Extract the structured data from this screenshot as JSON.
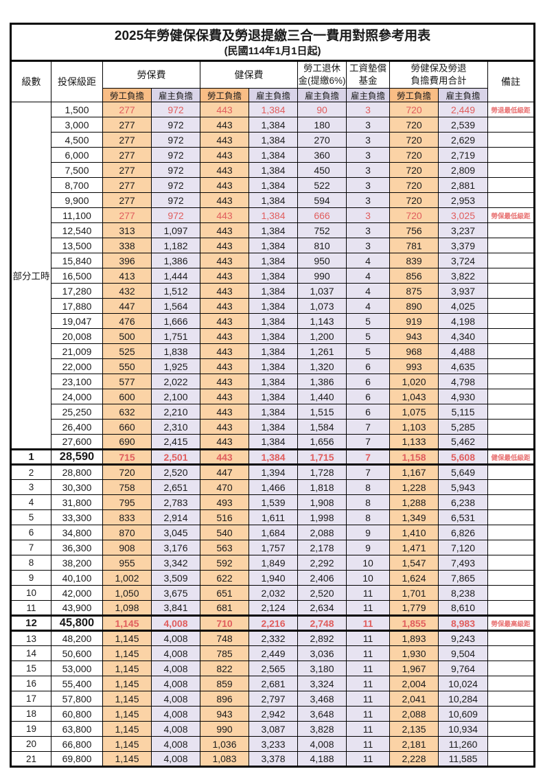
{
  "title": "2025年勞健保保費及勞退提繳三合一費用對照參考用表",
  "subtitle": "(民國114年1月1日起)",
  "header": {
    "level": "級數",
    "bracket": "投保級距",
    "labor_insurance": "勞保費",
    "health_insurance": "健保費",
    "pension_line1": "勞工退休",
    "pension_line2": "金(提繳6%)",
    "wage_fund_line1": "工資墊償",
    "wage_fund_line2": "基金",
    "total_line1": "勞健保及勞退",
    "total_line2": "負擔費用合計",
    "remark": "備註",
    "employee_share": "勞工負擔",
    "employer_share": "雇主負擔"
  },
  "part_time_label": "部分工時",
  "colors": {
    "employee_header_bg": "#f9bd85",
    "employee_cell_bg": "#fbd3a6",
    "employer_header_bg": "#d9d4e8",
    "employer_cell_bg": "#e7e3f1",
    "highlight_red": "#e05d5d",
    "remark_red": "#e87272"
  },
  "rows": [
    {
      "level": "",
      "bracket": "1,500",
      "li_emp": "277",
      "li_er": "972",
      "hi_emp": "443",
      "hi_er": "1,384",
      "pension": "90",
      "fund": "3",
      "tot_emp": "720",
      "tot_er": "2,449",
      "remark": "勞退最低級距",
      "red": true,
      "major": false
    },
    {
      "level": "",
      "bracket": "3,000",
      "li_emp": "277",
      "li_er": "972",
      "hi_emp": "443",
      "hi_er": "1,384",
      "pension": "180",
      "fund": "3",
      "tot_emp": "720",
      "tot_er": "2,539",
      "remark": "",
      "red": false,
      "major": false
    },
    {
      "level": "",
      "bracket": "4,500",
      "li_emp": "277",
      "li_er": "972",
      "hi_emp": "443",
      "hi_er": "1,384",
      "pension": "270",
      "fund": "3",
      "tot_emp": "720",
      "tot_er": "2,629",
      "remark": "",
      "red": false,
      "major": false
    },
    {
      "level": "",
      "bracket": "6,000",
      "li_emp": "277",
      "li_er": "972",
      "hi_emp": "443",
      "hi_er": "1,384",
      "pension": "360",
      "fund": "3",
      "tot_emp": "720",
      "tot_er": "2,719",
      "remark": "",
      "red": false,
      "major": false
    },
    {
      "level": "",
      "bracket": "7,500",
      "li_emp": "277",
      "li_er": "972",
      "hi_emp": "443",
      "hi_er": "1,384",
      "pension": "450",
      "fund": "3",
      "tot_emp": "720",
      "tot_er": "2,809",
      "remark": "",
      "red": false,
      "major": false
    },
    {
      "level": "",
      "bracket": "8,700",
      "li_emp": "277",
      "li_er": "972",
      "hi_emp": "443",
      "hi_er": "1,384",
      "pension": "522",
      "fund": "3",
      "tot_emp": "720",
      "tot_er": "2,881",
      "remark": "",
      "red": false,
      "major": false
    },
    {
      "level": "",
      "bracket": "9,900",
      "li_emp": "277",
      "li_er": "972",
      "hi_emp": "443",
      "hi_er": "1,384",
      "pension": "594",
      "fund": "3",
      "tot_emp": "720",
      "tot_er": "2,953",
      "remark": "",
      "red": false,
      "major": false
    },
    {
      "level": "",
      "bracket": "11,100",
      "li_emp": "277",
      "li_er": "972",
      "hi_emp": "443",
      "hi_er": "1,384",
      "pension": "666",
      "fund": "3",
      "tot_emp": "720",
      "tot_er": "3,025",
      "remark": "勞保最低級距",
      "red": true,
      "major": false
    },
    {
      "level": "",
      "bracket": "12,540",
      "li_emp": "313",
      "li_er": "1,097",
      "hi_emp": "443",
      "hi_er": "1,384",
      "pension": "752",
      "fund": "3",
      "tot_emp": "756",
      "tot_er": "3,237",
      "remark": "",
      "red": false,
      "major": false
    },
    {
      "level": "",
      "bracket": "13,500",
      "li_emp": "338",
      "li_er": "1,182",
      "hi_emp": "443",
      "hi_er": "1,384",
      "pension": "810",
      "fund": "3",
      "tot_emp": "781",
      "tot_er": "3,379",
      "remark": "",
      "red": false,
      "major": false
    },
    {
      "level": "",
      "bracket": "15,840",
      "li_emp": "396",
      "li_er": "1,386",
      "hi_emp": "443",
      "hi_er": "1,384",
      "pension": "950",
      "fund": "4",
      "tot_emp": "839",
      "tot_er": "3,724",
      "remark": "",
      "red": false,
      "major": false
    },
    {
      "level": "",
      "bracket": "16,500",
      "li_emp": "413",
      "li_er": "1,444",
      "hi_emp": "443",
      "hi_er": "1,384",
      "pension": "990",
      "fund": "4",
      "tot_emp": "856",
      "tot_er": "3,822",
      "remark": "",
      "red": false,
      "major": false
    },
    {
      "level": "",
      "bracket": "17,280",
      "li_emp": "432",
      "li_er": "1,512",
      "hi_emp": "443",
      "hi_er": "1,384",
      "pension": "1,037",
      "fund": "4",
      "tot_emp": "875",
      "tot_er": "3,937",
      "remark": "",
      "red": false,
      "major": false
    },
    {
      "level": "",
      "bracket": "17,880",
      "li_emp": "447",
      "li_er": "1,564",
      "hi_emp": "443",
      "hi_er": "1,384",
      "pension": "1,073",
      "fund": "4",
      "tot_emp": "890",
      "tot_er": "4,025",
      "remark": "",
      "red": false,
      "major": false
    },
    {
      "level": "",
      "bracket": "19,047",
      "li_emp": "476",
      "li_er": "1,666",
      "hi_emp": "443",
      "hi_er": "1,384",
      "pension": "1,143",
      "fund": "5",
      "tot_emp": "919",
      "tot_er": "4,198",
      "remark": "",
      "red": false,
      "major": false
    },
    {
      "level": "",
      "bracket": "20,008",
      "li_emp": "500",
      "li_er": "1,751",
      "hi_emp": "443",
      "hi_er": "1,384",
      "pension": "1,200",
      "fund": "5",
      "tot_emp": "943",
      "tot_er": "4,340",
      "remark": "",
      "red": false,
      "major": false
    },
    {
      "level": "",
      "bracket": "21,009",
      "li_emp": "525",
      "li_er": "1,838",
      "hi_emp": "443",
      "hi_er": "1,384",
      "pension": "1,261",
      "fund": "5",
      "tot_emp": "968",
      "tot_er": "4,488",
      "remark": "",
      "red": false,
      "major": false
    },
    {
      "level": "",
      "bracket": "22,000",
      "li_emp": "550",
      "li_er": "1,925",
      "hi_emp": "443",
      "hi_er": "1,384",
      "pension": "1,320",
      "fund": "6",
      "tot_emp": "993",
      "tot_er": "4,635",
      "remark": "",
      "red": false,
      "major": false
    },
    {
      "level": "",
      "bracket": "23,100",
      "li_emp": "577",
      "li_er": "2,022",
      "hi_emp": "443",
      "hi_er": "1,384",
      "pension": "1,386",
      "fund": "6",
      "tot_emp": "1,020",
      "tot_er": "4,798",
      "remark": "",
      "red": false,
      "major": false
    },
    {
      "level": "",
      "bracket": "24,000",
      "li_emp": "600",
      "li_er": "2,100",
      "hi_emp": "443",
      "hi_er": "1,384",
      "pension": "1,440",
      "fund": "6",
      "tot_emp": "1,043",
      "tot_er": "4,930",
      "remark": "",
      "red": false,
      "major": false
    },
    {
      "level": "",
      "bracket": "25,250",
      "li_emp": "632",
      "li_er": "2,210",
      "hi_emp": "443",
      "hi_er": "1,384",
      "pension": "1,515",
      "fund": "6",
      "tot_emp": "1,075",
      "tot_er": "5,115",
      "remark": "",
      "red": false,
      "major": false
    },
    {
      "level": "",
      "bracket": "26,400",
      "li_emp": "660",
      "li_er": "2,310",
      "hi_emp": "443",
      "hi_er": "1,384",
      "pension": "1,584",
      "fund": "7",
      "tot_emp": "1,103",
      "tot_er": "5,285",
      "remark": "",
      "red": false,
      "major": false
    },
    {
      "level": "",
      "bracket": "27,600",
      "li_emp": "690",
      "li_er": "2,415",
      "hi_emp": "443",
      "hi_er": "1,384",
      "pension": "1,656",
      "fund": "7",
      "tot_emp": "1,133",
      "tot_er": "5,462",
      "remark": "",
      "red": false,
      "major": false
    },
    {
      "level": "1",
      "bracket": "28,590",
      "li_emp": "715",
      "li_er": "2,501",
      "hi_emp": "443",
      "hi_er": "1,384",
      "pension": "1,715",
      "fund": "7",
      "tot_emp": "1,158",
      "tot_er": "5,608",
      "remark": "健保最低級距",
      "red": true,
      "major": true
    },
    {
      "level": "2",
      "bracket": "28,800",
      "li_emp": "720",
      "li_er": "2,520",
      "hi_emp": "447",
      "hi_er": "1,394",
      "pension": "1,728",
      "fund": "7",
      "tot_emp": "1,167",
      "tot_er": "5,649",
      "remark": "",
      "red": false,
      "major": false
    },
    {
      "level": "3",
      "bracket": "30,300",
      "li_emp": "758",
      "li_er": "2,651",
      "hi_emp": "470",
      "hi_er": "1,466",
      "pension": "1,818",
      "fund": "8",
      "tot_emp": "1,228",
      "tot_er": "5,943",
      "remark": "",
      "red": false,
      "major": false
    },
    {
      "level": "4",
      "bracket": "31,800",
      "li_emp": "795",
      "li_er": "2,783",
      "hi_emp": "493",
      "hi_er": "1,539",
      "pension": "1,908",
      "fund": "8",
      "tot_emp": "1,288",
      "tot_er": "6,238",
      "remark": "",
      "red": false,
      "major": false
    },
    {
      "level": "5",
      "bracket": "33,300",
      "li_emp": "833",
      "li_er": "2,914",
      "hi_emp": "516",
      "hi_er": "1,611",
      "pension": "1,998",
      "fund": "8",
      "tot_emp": "1,349",
      "tot_er": "6,531",
      "remark": "",
      "red": false,
      "major": false
    },
    {
      "level": "6",
      "bracket": "34,800",
      "li_emp": "870",
      "li_er": "3,045",
      "hi_emp": "540",
      "hi_er": "1,684",
      "pension": "2,088",
      "fund": "9",
      "tot_emp": "1,410",
      "tot_er": "6,826",
      "remark": "",
      "red": false,
      "major": false
    },
    {
      "level": "7",
      "bracket": "36,300",
      "li_emp": "908",
      "li_er": "3,176",
      "hi_emp": "563",
      "hi_er": "1,757",
      "pension": "2,178",
      "fund": "9",
      "tot_emp": "1,471",
      "tot_er": "7,120",
      "remark": "",
      "red": false,
      "major": false
    },
    {
      "level": "8",
      "bracket": "38,200",
      "li_emp": "955",
      "li_er": "3,342",
      "hi_emp": "592",
      "hi_er": "1,849",
      "pension": "2,292",
      "fund": "10",
      "tot_emp": "1,547",
      "tot_er": "7,493",
      "remark": "",
      "red": false,
      "major": false
    },
    {
      "level": "9",
      "bracket": "40,100",
      "li_emp": "1,002",
      "li_er": "3,509",
      "hi_emp": "622",
      "hi_er": "1,940",
      "pension": "2,406",
      "fund": "10",
      "tot_emp": "1,624",
      "tot_er": "7,865",
      "remark": "",
      "red": false,
      "major": false
    },
    {
      "level": "10",
      "bracket": "42,000",
      "li_emp": "1,050",
      "li_er": "3,675",
      "hi_emp": "651",
      "hi_er": "2,032",
      "pension": "2,520",
      "fund": "11",
      "tot_emp": "1,701",
      "tot_er": "8,238",
      "remark": "",
      "red": false,
      "major": false
    },
    {
      "level": "11",
      "bracket": "43,900",
      "li_emp": "1,098",
      "li_er": "3,841",
      "hi_emp": "681",
      "hi_er": "2,124",
      "pension": "2,634",
      "fund": "11",
      "tot_emp": "1,779",
      "tot_er": "8,610",
      "remark": "",
      "red": false,
      "major": false
    },
    {
      "level": "12",
      "bracket": "45,800",
      "li_emp": "1,145",
      "li_er": "4,008",
      "hi_emp": "710",
      "hi_er": "2,216",
      "pension": "2,748",
      "fund": "11",
      "tot_emp": "1,855",
      "tot_er": "8,983",
      "remark": "勞保最高級距",
      "red": true,
      "major": true
    },
    {
      "level": "13",
      "bracket": "48,200",
      "li_emp": "1,145",
      "li_er": "4,008",
      "hi_emp": "748",
      "hi_er": "2,332",
      "pension": "2,892",
      "fund": "11",
      "tot_emp": "1,893",
      "tot_er": "9,243",
      "remark": "",
      "red": false,
      "major": false
    },
    {
      "level": "14",
      "bracket": "50,600",
      "li_emp": "1,145",
      "li_er": "4,008",
      "hi_emp": "785",
      "hi_er": "2,449",
      "pension": "3,036",
      "fund": "11",
      "tot_emp": "1,930",
      "tot_er": "9,504",
      "remark": "",
      "red": false,
      "major": false
    },
    {
      "level": "15",
      "bracket": "53,000",
      "li_emp": "1,145",
      "li_er": "4,008",
      "hi_emp": "822",
      "hi_er": "2,565",
      "pension": "3,180",
      "fund": "11",
      "tot_emp": "1,967",
      "tot_er": "9,764",
      "remark": "",
      "red": false,
      "major": false
    },
    {
      "level": "16",
      "bracket": "55,400",
      "li_emp": "1,145",
      "li_er": "4,008",
      "hi_emp": "859",
      "hi_er": "2,681",
      "pension": "3,324",
      "fund": "11",
      "tot_emp": "2,004",
      "tot_er": "10,024",
      "remark": "",
      "red": false,
      "major": false
    },
    {
      "level": "17",
      "bracket": "57,800",
      "li_emp": "1,145",
      "li_er": "4,008",
      "hi_emp": "896",
      "hi_er": "2,797",
      "pension": "3,468",
      "fund": "11",
      "tot_emp": "2,041",
      "tot_er": "10,284",
      "remark": "",
      "red": false,
      "major": false
    },
    {
      "level": "18",
      "bracket": "60,800",
      "li_emp": "1,145",
      "li_er": "4,008",
      "hi_emp": "943",
      "hi_er": "2,942",
      "pension": "3,648",
      "fund": "11",
      "tot_emp": "2,088",
      "tot_er": "10,609",
      "remark": "",
      "red": false,
      "major": false
    },
    {
      "level": "19",
      "bracket": "63,800",
      "li_emp": "1,145",
      "li_er": "4,008",
      "hi_emp": "990",
      "hi_er": "3,087",
      "pension": "3,828",
      "fund": "11",
      "tot_emp": "2,135",
      "tot_er": "10,934",
      "remark": "",
      "red": false,
      "major": false
    },
    {
      "level": "20",
      "bracket": "66,800",
      "li_emp": "1,145",
      "li_er": "4,008",
      "hi_emp": "1,036",
      "hi_er": "3,233",
      "pension": "4,008",
      "fund": "11",
      "tot_emp": "2,181",
      "tot_er": "11,260",
      "remark": "",
      "red": false,
      "major": false
    },
    {
      "level": "21",
      "bracket": "69,800",
      "li_emp": "1,145",
      "li_er": "4,008",
      "hi_emp": "1,083",
      "hi_er": "3,378",
      "pension": "4,188",
      "fund": "11",
      "tot_emp": "2,228",
      "tot_er": "11,585",
      "remark": "",
      "red": false,
      "major": false
    }
  ]
}
